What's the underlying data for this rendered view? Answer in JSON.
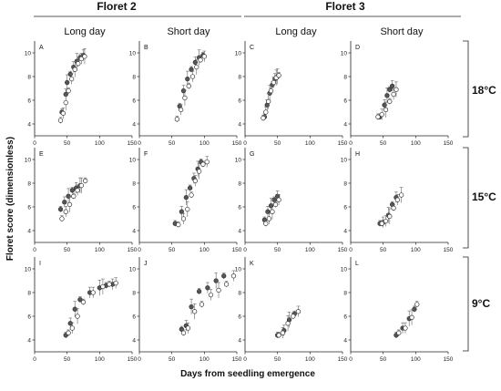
{
  "header": {
    "groups": [
      "Floret 2",
      "Floret 3"
    ],
    "columns": [
      "Long day",
      "Short day",
      "Long day",
      "Short day"
    ],
    "rows": [
      "18°C",
      "15°C",
      "9°C"
    ]
  },
  "axes": {
    "ylabel": "Floret score (dimensionless)",
    "xlabel": "Days from seedling emergence",
    "xticks": [
      "0",
      "50",
      "100",
      "150"
    ],
    "yticks": [
      "4",
      "6",
      "8",
      "10"
    ]
  },
  "colors": {
    "filled": "#555555",
    "open": "#ffffff",
    "stroke": "#333333"
  },
  "chart_data": [
    {
      "panel": "A",
      "type": "scatter",
      "xlim": [
        0,
        150
      ],
      "ylim": [
        3,
        11
      ],
      "series": [
        {
          "name": "",
          "style": "filled",
          "points": [
            [
              42,
              5.0
            ],
            [
              48,
              6.5
            ],
            [
              50,
              7.5
            ],
            [
              55,
              8.2
            ],
            [
              60,
              8.8
            ],
            [
              65,
              9.3
            ],
            [
              70,
              9.6
            ],
            [
              75,
              9.8
            ]
          ]
        },
        {
          "name": "",
          "style": "open",
          "points": [
            [
              40,
              4.3
            ],
            [
              44,
              4.9
            ],
            [
              48,
              5.8
            ],
            [
              52,
              6.8
            ],
            [
              57,
              7.8
            ],
            [
              62,
              8.6
            ],
            [
              67,
              9.1
            ],
            [
              72,
              9.5
            ],
            [
              77,
              9.7
            ]
          ]
        }
      ]
    },
    {
      "panel": "B",
      "type": "scatter",
      "xlim": [
        0,
        150
      ],
      "ylim": [
        3,
        11
      ],
      "series": [
        {
          "name": "",
          "style": "filled",
          "points": [
            [
              62,
              5.5
            ],
            [
              68,
              6.8
            ],
            [
              74,
              7.8
            ],
            [
              80,
              8.6
            ],
            [
              86,
              9.2
            ],
            [
              92,
              9.6
            ],
            [
              98,
              9.8
            ]
          ]
        },
        {
          "name": "",
          "style": "open",
          "points": [
            [
              58,
              4.4
            ],
            [
              64,
              5.2
            ],
            [
              70,
              6.2
            ],
            [
              76,
              7.2
            ],
            [
              82,
              8.0
            ],
            [
              88,
              8.8
            ],
            [
              94,
              9.4
            ],
            [
              100,
              9.7
            ]
          ]
        }
      ]
    },
    {
      "panel": "C",
      "type": "scatter",
      "xlim": [
        0,
        150
      ],
      "ylim": [
        3,
        11
      ],
      "series": [
        {
          "name": "",
          "style": "filled",
          "points": [
            [
              30,
              4.6
            ],
            [
              34,
              5.6
            ],
            [
              38,
              6.6
            ],
            [
              42,
              7.3
            ],
            [
              46,
              7.8
            ],
            [
              50,
              8.0
            ]
          ]
        },
        {
          "name": "",
          "style": "open",
          "points": [
            [
              28,
              4.5
            ],
            [
              32,
              5.0
            ],
            [
              36,
              5.9
            ],
            [
              40,
              6.8
            ],
            [
              44,
              7.5
            ],
            [
              48,
              7.9
            ],
            [
              52,
              8.1
            ]
          ]
        }
      ]
    },
    {
      "panel": "D",
      "type": "scatter",
      "xlim": [
        0,
        150
      ],
      "ylim": [
        3,
        11
      ],
      "series": [
        {
          "name": "",
          "style": "filled",
          "points": [
            [
              45,
              4.6
            ],
            [
              52,
              5.6
            ],
            [
              56,
              6.4
            ],
            [
              60,
              6.9
            ],
            [
              64,
              7.2
            ]
          ]
        },
        {
          "name": "",
          "style": "open",
          "points": [
            [
              42,
              4.6
            ],
            [
              48,
              4.8
            ],
            [
              54,
              5.2
            ],
            [
              60,
              5.9
            ],
            [
              66,
              6.5
            ],
            [
              70,
              6.9
            ]
          ]
        }
      ]
    },
    {
      "panel": "E",
      "type": "scatter",
      "xlim": [
        0,
        150
      ],
      "ylim": [
        3,
        11
      ],
      "series": [
        {
          "name": "",
          "style": "filled",
          "points": [
            [
              40,
              5.8
            ],
            [
              46,
              6.4
            ],
            [
              52,
              6.9
            ],
            [
              58,
              7.4
            ],
            [
              64,
              7.6
            ],
            [
              70,
              7.8
            ]
          ]
        },
        {
          "name": "",
          "style": "open",
          "points": [
            [
              42,
              5.0
            ],
            [
              48,
              5.6
            ],
            [
              54,
              6.2
            ],
            [
              60,
              6.9
            ],
            [
              66,
              7.4
            ],
            [
              72,
              7.8
            ],
            [
              78,
              8.2
            ]
          ]
        }
      ]
    },
    {
      "panel": "F",
      "type": "scatter",
      "xlim": [
        0,
        150
      ],
      "ylim": [
        3,
        11
      ],
      "series": [
        {
          "name": "",
          "style": "filled",
          "points": [
            [
              55,
              4.6
            ],
            [
              65,
              5.6
            ],
            [
              72,
              6.8
            ],
            [
              78,
              7.6
            ],
            [
              84,
              8.4
            ],
            [
              90,
              9.2
            ],
            [
              95,
              9.8
            ]
          ]
        },
        {
          "name": "",
          "style": "open",
          "points": [
            [
              60,
              4.5
            ],
            [
              68,
              5.0
            ],
            [
              74,
              5.8
            ],
            [
              80,
              7.0
            ],
            [
              86,
              8.2
            ],
            [
              92,
              9.0
            ],
            [
              98,
              9.6
            ],
            [
              104,
              9.8
            ]
          ]
        }
      ]
    },
    {
      "panel": "G",
      "type": "scatter",
      "xlim": [
        0,
        150
      ],
      "ylim": [
        3,
        11
      ],
      "series": [
        {
          "name": "",
          "style": "filled",
          "points": [
            [
              30,
              4.9
            ],
            [
              35,
              5.6
            ],
            [
              40,
              6.1
            ],
            [
              45,
              6.6
            ],
            [
              50,
              6.9
            ]
          ]
        },
        {
          "name": "",
          "style": "open",
          "points": [
            [
              32,
              4.6
            ],
            [
              37,
              5.0
            ],
            [
              42,
              5.6
            ],
            [
              47,
              6.2
            ],
            [
              52,
              6.6
            ]
          ]
        }
      ]
    },
    {
      "panel": "H",
      "type": "scatter",
      "xlim": [
        0,
        150
      ],
      "ylim": [
        3,
        11
      ],
      "series": [
        {
          "name": "",
          "style": "filled",
          "points": [
            [
              45,
              4.6
            ],
            [
              50,
              4.7
            ],
            [
              58,
              5.3
            ],
            [
              64,
              6.2
            ],
            [
              70,
              6.8
            ]
          ]
        },
        {
          "name": "",
          "style": "open",
          "points": [
            [
              48,
              4.6
            ],
            [
              54,
              4.8
            ],
            [
              60,
              5.2
            ],
            [
              66,
              5.9
            ],
            [
              72,
              6.6
            ],
            [
              78,
              7.0
            ]
          ]
        }
      ]
    },
    {
      "panel": "I",
      "type": "scatter",
      "xlim": [
        0,
        150
      ],
      "ylim": [
        3,
        11
      ],
      "series": [
        {
          "name": "",
          "style": "filled",
          "points": [
            [
              48,
              4.4
            ],
            [
              55,
              5.4
            ],
            [
              62,
              6.6
            ],
            [
              70,
              7.4
            ],
            [
              85,
              8.0
            ],
            [
              100,
              8.4
            ],
            [
              110,
              8.6
            ],
            [
              120,
              8.7
            ]
          ]
        },
        {
          "name": "",
          "style": "open",
          "points": [
            [
              52,
              4.6
            ],
            [
              58,
              5.0
            ],
            [
              66,
              6.0
            ],
            [
              75,
              7.2
            ],
            [
              90,
              8.0
            ],
            [
              105,
              8.5
            ],
            [
              115,
              8.7
            ],
            [
              125,
              8.8
            ]
          ]
        }
      ]
    },
    {
      "panel": "J",
      "type": "scatter",
      "xlim": [
        0,
        150
      ],
      "ylim": [
        3,
        11
      ],
      "series": [
        {
          "name": "",
          "style": "filled",
          "points": [
            [
              65,
              4.9
            ],
            [
              72,
              5.2
            ],
            [
              80,
              6.8
            ],
            [
              92,
              8.1
            ],
            [
              105,
              8.4
            ],
            [
              118,
              9.0
            ],
            [
              130,
              9.4
            ]
          ]
        },
        {
          "name": "",
          "style": "open",
          "points": [
            [
              68,
              4.6
            ],
            [
              75,
              5.0
            ],
            [
              85,
              6.4
            ],
            [
              96,
              7.0
            ],
            [
              110,
              7.8
            ],
            [
              122,
              8.2
            ],
            [
              134,
              8.7
            ],
            [
              145,
              9.4
            ]
          ]
        }
      ]
    },
    {
      "panel": "K",
      "type": "scatter",
      "xlim": [
        0,
        150
      ],
      "ylim": [
        3,
        11
      ],
      "series": [
        {
          "name": "",
          "style": "filled",
          "points": [
            [
              50,
              4.4
            ],
            [
              60,
              4.8
            ],
            [
              68,
              5.7
            ],
            [
              76,
              6.2
            ]
          ]
        },
        {
          "name": "",
          "style": "open",
          "points": [
            [
              52,
              4.4
            ],
            [
              58,
              4.6
            ],
            [
              66,
              5.4
            ],
            [
              74,
              6.0
            ],
            [
              82,
              6.4
            ]
          ]
        }
      ]
    },
    {
      "panel": "L",
      "type": "scatter",
      "xlim": [
        0,
        150
      ],
      "ylim": [
        3,
        11
      ],
      "series": [
        {
          "name": "",
          "style": "filled",
          "points": [
            [
              70,
              4.4
            ],
            [
              80,
              5.0
            ],
            [
              90,
              5.8
            ],
            [
              98,
              6.6
            ]
          ]
        },
        {
          "name": "",
          "style": "open",
          "points": [
            [
              74,
              4.6
            ],
            [
              84,
              5.0
            ],
            [
              94,
              5.9
            ],
            [
              102,
              7.0
            ]
          ]
        }
      ]
    }
  ]
}
